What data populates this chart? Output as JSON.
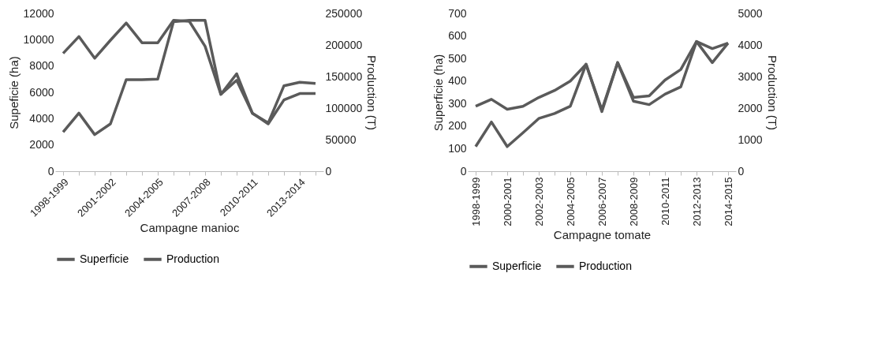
{
  "chart_data": [
    {
      "type": "line",
      "xlabel": "Campagne manioc",
      "ylabel": "Supeficie (ha)",
      "y2label": "Production (T)",
      "categories": [
        "1998-1999",
        null,
        null,
        "2001-2002",
        null,
        null,
        "2004-2005",
        null,
        null,
        "2007-2008",
        null,
        null,
        "2010-2011",
        null,
        null,
        "2013-2014",
        null
      ],
      "series": [
        {
          "name": "Superficie",
          "color": "#5a5a5a",
          "values": [
            8960,
            10240,
            8590,
            9960,
            11270,
            9770,
            9770,
            11480,
            11400,
            9500,
            5840,
            7410,
            4400,
            3670,
            6500,
            6760,
            6680
          ]
        },
        {
          "name": "Production",
          "color": "#5a5a5a",
          "axis": "y2",
          "values": [
            62000,
            92000,
            58000,
            75000,
            145000,
            145000,
            146000,
            237000,
            239000,
            239000,
            122000,
            144000,
            92000,
            75000,
            113000,
            123000,
            123000
          ]
        }
      ],
      "ylim": [
        0,
        12000
      ],
      "yticks": [
        0,
        2000,
        4000,
        6000,
        8000,
        10000,
        12000
      ],
      "y2lim": [
        0,
        250000
      ],
      "y2ticks": [
        0,
        50000,
        100000,
        150000,
        200000,
        250000
      ],
      "legend": "bottom",
      "grid": false
    },
    {
      "type": "line",
      "xlabel": "Campagne tomate",
      "ylabel": "Superficie (ha)",
      "y2label": "Production (T)",
      "categories": [
        "1998-1999",
        null,
        "2000-2001",
        null,
        "2002-2003",
        null,
        "2004-2005",
        null,
        "2006-2007",
        null,
        "2008-2009",
        null,
        "2010-2011",
        null,
        "2012-2013",
        null,
        "2014-2015"
      ],
      "series": [
        {
          "name": "Superficie",
          "color": "#5a5a5a",
          "values": [
            288,
            319,
            275,
            288,
            327,
            358,
            400,
            474,
            272,
            482,
            327,
            334,
            404,
            451,
            575,
            544,
            568
          ]
        },
        {
          "name": "Production",
          "color": "#5a5a5a",
          "axis": "y2",
          "values": [
            780,
            1560,
            780,
            1220,
            1670,
            1830,
            2060,
            3390,
            1890,
            3440,
            2220,
            2110,
            2440,
            2670,
            4110,
            3440,
            4060
          ]
        }
      ],
      "ylim": [
        0,
        700
      ],
      "yticks": [
        0,
        100,
        200,
        300,
        400,
        500,
        600,
        700
      ],
      "y2lim": [
        0,
        5000
      ],
      "y2ticks": [
        0,
        1000,
        2000,
        3000,
        4000,
        5000
      ],
      "legend": "bottom",
      "grid": false
    }
  ]
}
